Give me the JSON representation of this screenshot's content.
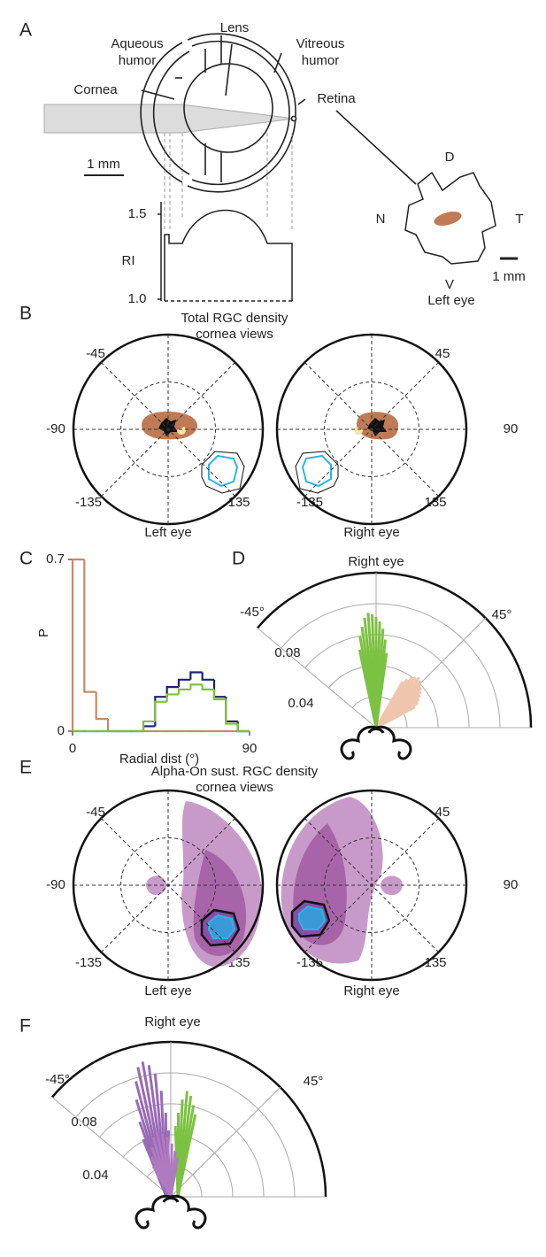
{
  "figure": {
    "A": {
      "label": "A",
      "lens": "Lens",
      "aqueous": [
        "Aqueous",
        "humor"
      ],
      "vitreous": [
        "Vitreous",
        "humor"
      ],
      "cornea": "Cornea",
      "retina": "Retina",
      "scale": "1 mm",
      "ri_ticks": [
        "1.5",
        "1.0"
      ],
      "ri_label": "RI",
      "retina_map": {
        "dorsal": "D",
        "nasal": "N",
        "temporal": "T",
        "ventral": "V",
        "scale": "1 mm",
        "eye": "Left eye"
      }
    },
    "B": {
      "label": "B",
      "title": [
        "Total RGC density",
        "cornea views"
      ],
      "left": {
        "angles": [
          "-45",
          "-90",
          "-135",
          "135"
        ],
        "eye": "Left eye"
      },
      "right": {
        "angles": [
          "45",
          "90",
          "-135",
          "135"
        ],
        "eye": "Right eye"
      }
    },
    "D": {
      "label": "D",
      "eye": "Right eye",
      "angles": [
        "-45°",
        "45°"
      ],
      "radii": [
        "0.08",
        "0.04"
      ]
    },
    "E": {
      "label": "E",
      "title": [
        "Alpha-On sust. RGC density",
        "cornea views"
      ],
      "left": {
        "angles": [
          "-45",
          "-90",
          "-135",
          "135"
        ],
        "eye": "Left eye"
      },
      "right": {
        "angles": [
          "45",
          "90",
          "-135",
          "135"
        ],
        "eye": "Right eye"
      }
    },
    "F": {
      "label": "F",
      "eye": "Right eye",
      "angles": [
        "-45°",
        "45°"
      ],
      "radii": [
        "0.08",
        "0.04"
      ]
    }
  },
  "chart_data": {
    "type": "histogram",
    "label": "C",
    "xlabel": "Radial dist (°)",
    "ylabel": "P",
    "bins": [
      0,
      6,
      12,
      18,
      24,
      30,
      36,
      42,
      48,
      54,
      60,
      66,
      72,
      78,
      84,
      90
    ],
    "xlim": [
      0,
      90
    ],
    "xticks": [
      0,
      90
    ],
    "ylim": [
      0,
      0.7
    ],
    "yticks": [
      0,
      0.7
    ],
    "series": [
      {
        "color": "#c8896a",
        "values": [
          0.7,
          0.16,
          0.05,
          0,
          0,
          0,
          0,
          0,
          0,
          0,
          0,
          0,
          0,
          0,
          0
        ]
      },
      {
        "color": "#1f2270",
        "values": [
          0,
          0,
          0,
          0,
          0,
          0,
          0.02,
          0.14,
          0.18,
          0.21,
          0.24,
          0.21,
          0.14,
          0.04,
          0
        ]
      },
      {
        "color": "#7cc242",
        "values": [
          0,
          0,
          0,
          0,
          0,
          0,
          0.04,
          0.12,
          0.15,
          0.17,
          0.19,
          0.17,
          0.13,
          0.03,
          0
        ]
      }
    ]
  }
}
